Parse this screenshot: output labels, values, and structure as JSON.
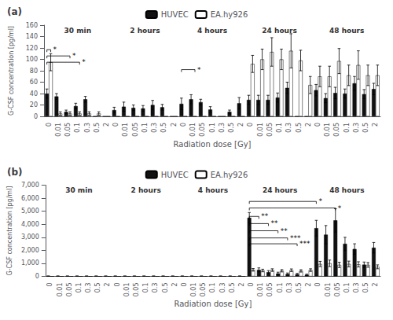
{
  "chart_data": [
    {
      "type": "bar",
      "panel_label": "(a)",
      "xlabel": "Radiation dose [Gy]",
      "ylabel": "G-CSF concentration [pg/ml]",
      "groups": [
        "30 min",
        "2 hours",
        "4 hours",
        "24 hours",
        "48 hours"
      ],
      "categories": [
        "0",
        "0.01",
        "0.05",
        "0.1",
        "0.3",
        "0.5",
        "2",
        "0",
        "0.01",
        "0.05",
        "0.1",
        "0.3",
        "0.5",
        "2",
        "0",
        "0.01",
        "0.05",
        "0.1",
        "0.3",
        "0.5",
        "2",
        "0",
        "0.01",
        "0.05",
        "0.1",
        "0.3",
        "0.5",
        "2",
        "0",
        "0.01",
        "0.05",
        "0.1",
        "0.3",
        "0.5",
        "2"
      ],
      "series": [
        {
          "name": "HUVEC",
          "color": "#111111",
          "values": [
            40,
            35,
            8,
            18,
            30,
            0,
            0,
            11,
            17,
            15,
            14,
            20,
            16,
            0,
            22,
            30,
            25,
            12,
            0,
            8,
            23,
            29,
            29,
            29,
            33,
            50,
            0,
            0,
            46,
            32,
            41,
            40,
            58,
            39,
            48
          ],
          "errors": [
            8,
            5,
            3,
            5,
            5,
            0,
            0,
            5,
            8,
            5,
            5,
            8,
            5,
            0,
            10,
            8,
            5,
            5,
            0,
            3,
            10,
            8,
            8,
            8,
            8,
            10,
            0,
            0,
            10,
            8,
            10,
            8,
            12,
            8,
            10
          ]
        },
        {
          "name": "EA.hy926",
          "color": "#ffffff",
          "values": [
            95,
            5,
            5,
            5,
            5,
            5,
            0,
            0,
            0,
            0,
            0,
            0,
            0,
            0,
            0,
            0,
            0,
            0,
            0,
            0,
            0,
            92,
            100,
            113,
            100,
            115,
            98,
            55,
            70,
            70,
            97,
            72,
            90,
            72,
            72
          ],
          "errors": [
            15,
            3,
            3,
            3,
            3,
            3,
            0,
            0,
            0,
            0,
            0,
            0,
            0,
            0,
            0,
            0,
            0,
            0,
            0,
            0,
            0,
            15,
            18,
            25,
            18,
            30,
            18,
            15,
            18,
            18,
            22,
            18,
            25,
            18,
            18
          ]
        }
      ],
      "ylim": [
        0,
        160
      ],
      "yticks": [
        0,
        20,
        40,
        60,
        80,
        100,
        120,
        140,
        160
      ],
      "grid": false,
      "legend": "top",
      "annotations": [
        {
          "text": "*",
          "y": 117,
          "from_category": 0,
          "from_series": "HUVEC",
          "to_category": 0,
          "to_series": "EA.hy926"
        },
        {
          "text": "*",
          "y": 106,
          "from_category": 0,
          "from_series": "HUVEC",
          "to_category": 2,
          "to_series": "EA.hy926"
        },
        {
          "text": "*",
          "y": 95,
          "from_category": 0,
          "from_series": "HUVEC",
          "to_category": 3,
          "to_series": "EA.hy926"
        },
        {
          "text": "*",
          "y": 82,
          "from_category": 14,
          "from_series": "HUVEC",
          "to_category": 15,
          "to_series": "EA.hy926"
        }
      ]
    },
    {
      "type": "bar",
      "panel_label": "(b)",
      "xlabel": "Radiation dose [Gy]",
      "ylabel": "G-CSF concentration [pg/ml]",
      "groups": [
        "30 min",
        "2 hours",
        "4 hours",
        "24 hours",
        "48 hours"
      ],
      "categories": [
        "0",
        "0.01",
        "0.05",
        "0.1",
        "0.3",
        "0.5",
        "2",
        "0",
        "0.01",
        "0.05",
        "0.1",
        "0.3",
        "0.5",
        "2",
        "0",
        "0.01",
        "0.05",
        "0.1",
        "0.3",
        "0.5",
        "2",
        "0",
        "0.01",
        "0.05",
        "0.1",
        "0.3",
        "0.5",
        "2",
        "0",
        "0.01",
        "0.05",
        "0.1",
        "0.3",
        "0.5",
        "2"
      ],
      "series": [
        {
          "name": "HUVEC",
          "color": "#111111",
          "values": [
            20,
            20,
            20,
            20,
            20,
            20,
            20,
            20,
            20,
            20,
            20,
            20,
            20,
            20,
            20,
            20,
            20,
            20,
            20,
            20,
            20,
            4500,
            500,
            320,
            220,
            180,
            160,
            120,
            3700,
            3200,
            4300,
            2500,
            2100,
            900,
            2200
          ],
          "errors": [
            5,
            5,
            5,
            5,
            5,
            5,
            5,
            5,
            5,
            5,
            5,
            5,
            5,
            5,
            5,
            5,
            5,
            5,
            5,
            5,
            5,
            400,
            150,
            120,
            100,
            80,
            70,
            50,
            600,
            700,
            900,
            500,
            400,
            200,
            400
          ]
        },
        {
          "name": "EA.hy926",
          "color": "#ffffff",
          "values": [
            0,
            0,
            0,
            0,
            0,
            0,
            0,
            0,
            0,
            0,
            0,
            0,
            0,
            0,
            0,
            0,
            0,
            0,
            0,
            0,
            0,
            500,
            450,
            480,
            430,
            470,
            420,
            480,
            950,
            1000,
            880,
            950,
            920,
            880,
            730
          ],
          "errors": [
            0,
            0,
            0,
            0,
            0,
            0,
            0,
            0,
            0,
            0,
            0,
            0,
            0,
            0,
            0,
            0,
            0,
            0,
            0,
            0,
            0,
            100,
            100,
            100,
            90,
            100,
            90,
            100,
            200,
            250,
            200,
            220,
            200,
            180,
            150
          ]
        }
      ],
      "ylim": [
        0,
        7000
      ],
      "yticks": [
        0,
        {
          "value": 1000,
          "label": "1,000"
        },
        {
          "value": 2000,
          "label": "2,000"
        },
        {
          "value": 3000,
          "label": "3,000"
        },
        {
          "value": 4000,
          "label": "4,000"
        },
        {
          "value": 5000,
          "label": "5,000"
        },
        {
          "value": 6000,
          "label": "6,000"
        },
        {
          "value": 7000,
          "label": "7,000"
        }
      ],
      "grid": false,
      "legend": "top",
      "annotations": [
        {
          "text": "**",
          "y": 4600,
          "from_category": 21,
          "from_series": "HUVEC",
          "to_category": 22,
          "to_series": "HUVEC"
        },
        {
          "text": "**",
          "y": 4050,
          "from_category": 21,
          "from_series": "HUVEC",
          "to_category": 23,
          "to_series": "HUVEC"
        },
        {
          "text": "**",
          "y": 3500,
          "from_category": 21,
          "from_series": "HUVEC",
          "to_category": 24,
          "to_series": "HUVEC"
        },
        {
          "text": "***",
          "y": 2950,
          "from_category": 21,
          "from_series": "HUVEC",
          "to_category": 25,
          "to_series": "HUVEC"
        },
        {
          "text": "***",
          "y": 2500,
          "from_category": 21,
          "from_series": "HUVEC",
          "to_category": 26,
          "to_series": "HUVEC"
        },
        {
          "text": "*",
          "y": 5750,
          "from_category": 21,
          "from_series": "HUVEC",
          "to_category": 28,
          "to_series": "HUVEC"
        },
        {
          "text": "*",
          "y": 5250,
          "from_category": 21,
          "from_series": "HUVEC",
          "to_category": 30,
          "to_series": "HUVEC"
        }
      ]
    }
  ]
}
